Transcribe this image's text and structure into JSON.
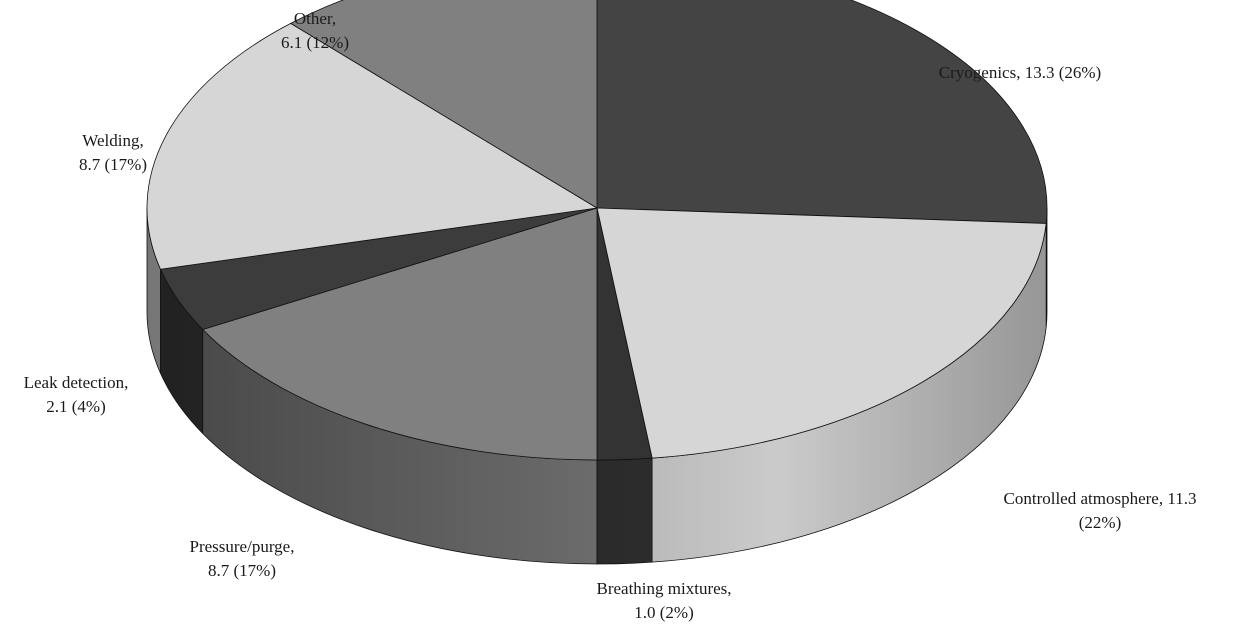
{
  "chart_data": {
    "type": "pie",
    "variant": "3d-exploded-none",
    "title": "",
    "slices": [
      {
        "name": "Cryogenics",
        "value": 13.3,
        "percent": 26,
        "label_lines": [
          "Cryogenics, 13.3 (26%)"
        ],
        "color": "#444444"
      },
      {
        "name": "Controlled atmosphere",
        "value": 11.3,
        "percent": 22,
        "label_lines": [
          "Controlled atmosphere, 11.3",
          "(22%)"
        ],
        "color": "#d6d6d6"
      },
      {
        "name": "Breathing mixtures",
        "value": 1.0,
        "percent": 2,
        "label_lines": [
          "Breathing mixtures,",
          "1.0 (2%)"
        ],
        "color": "#333333"
      },
      {
        "name": "Pressure/purge",
        "value": 8.7,
        "percent": 17,
        "label_lines": [
          "Pressure/purge,",
          "8.7 (17%)"
        ],
        "color": "#808080"
      },
      {
        "name": "Leak detection",
        "value": 2.1,
        "percent": 4,
        "label_lines": [
          "Leak detection,",
          "2.1 (4%)"
        ],
        "color": "#3c3c3c"
      },
      {
        "name": "Welding",
        "value": 8.7,
        "percent": 17,
        "label_lines": [
          "Welding,",
          "8.7 (17%)"
        ],
        "color": "#d6d6d6"
      },
      {
        "name": "Other",
        "value": 6.1,
        "percent": 12,
        "label_lines": [
          "Other,",
          "6.1 (12%)"
        ],
        "color": "#808080"
      }
    ],
    "start_angle_deg": 0,
    "direction": "clockwise",
    "legend": "none"
  }
}
